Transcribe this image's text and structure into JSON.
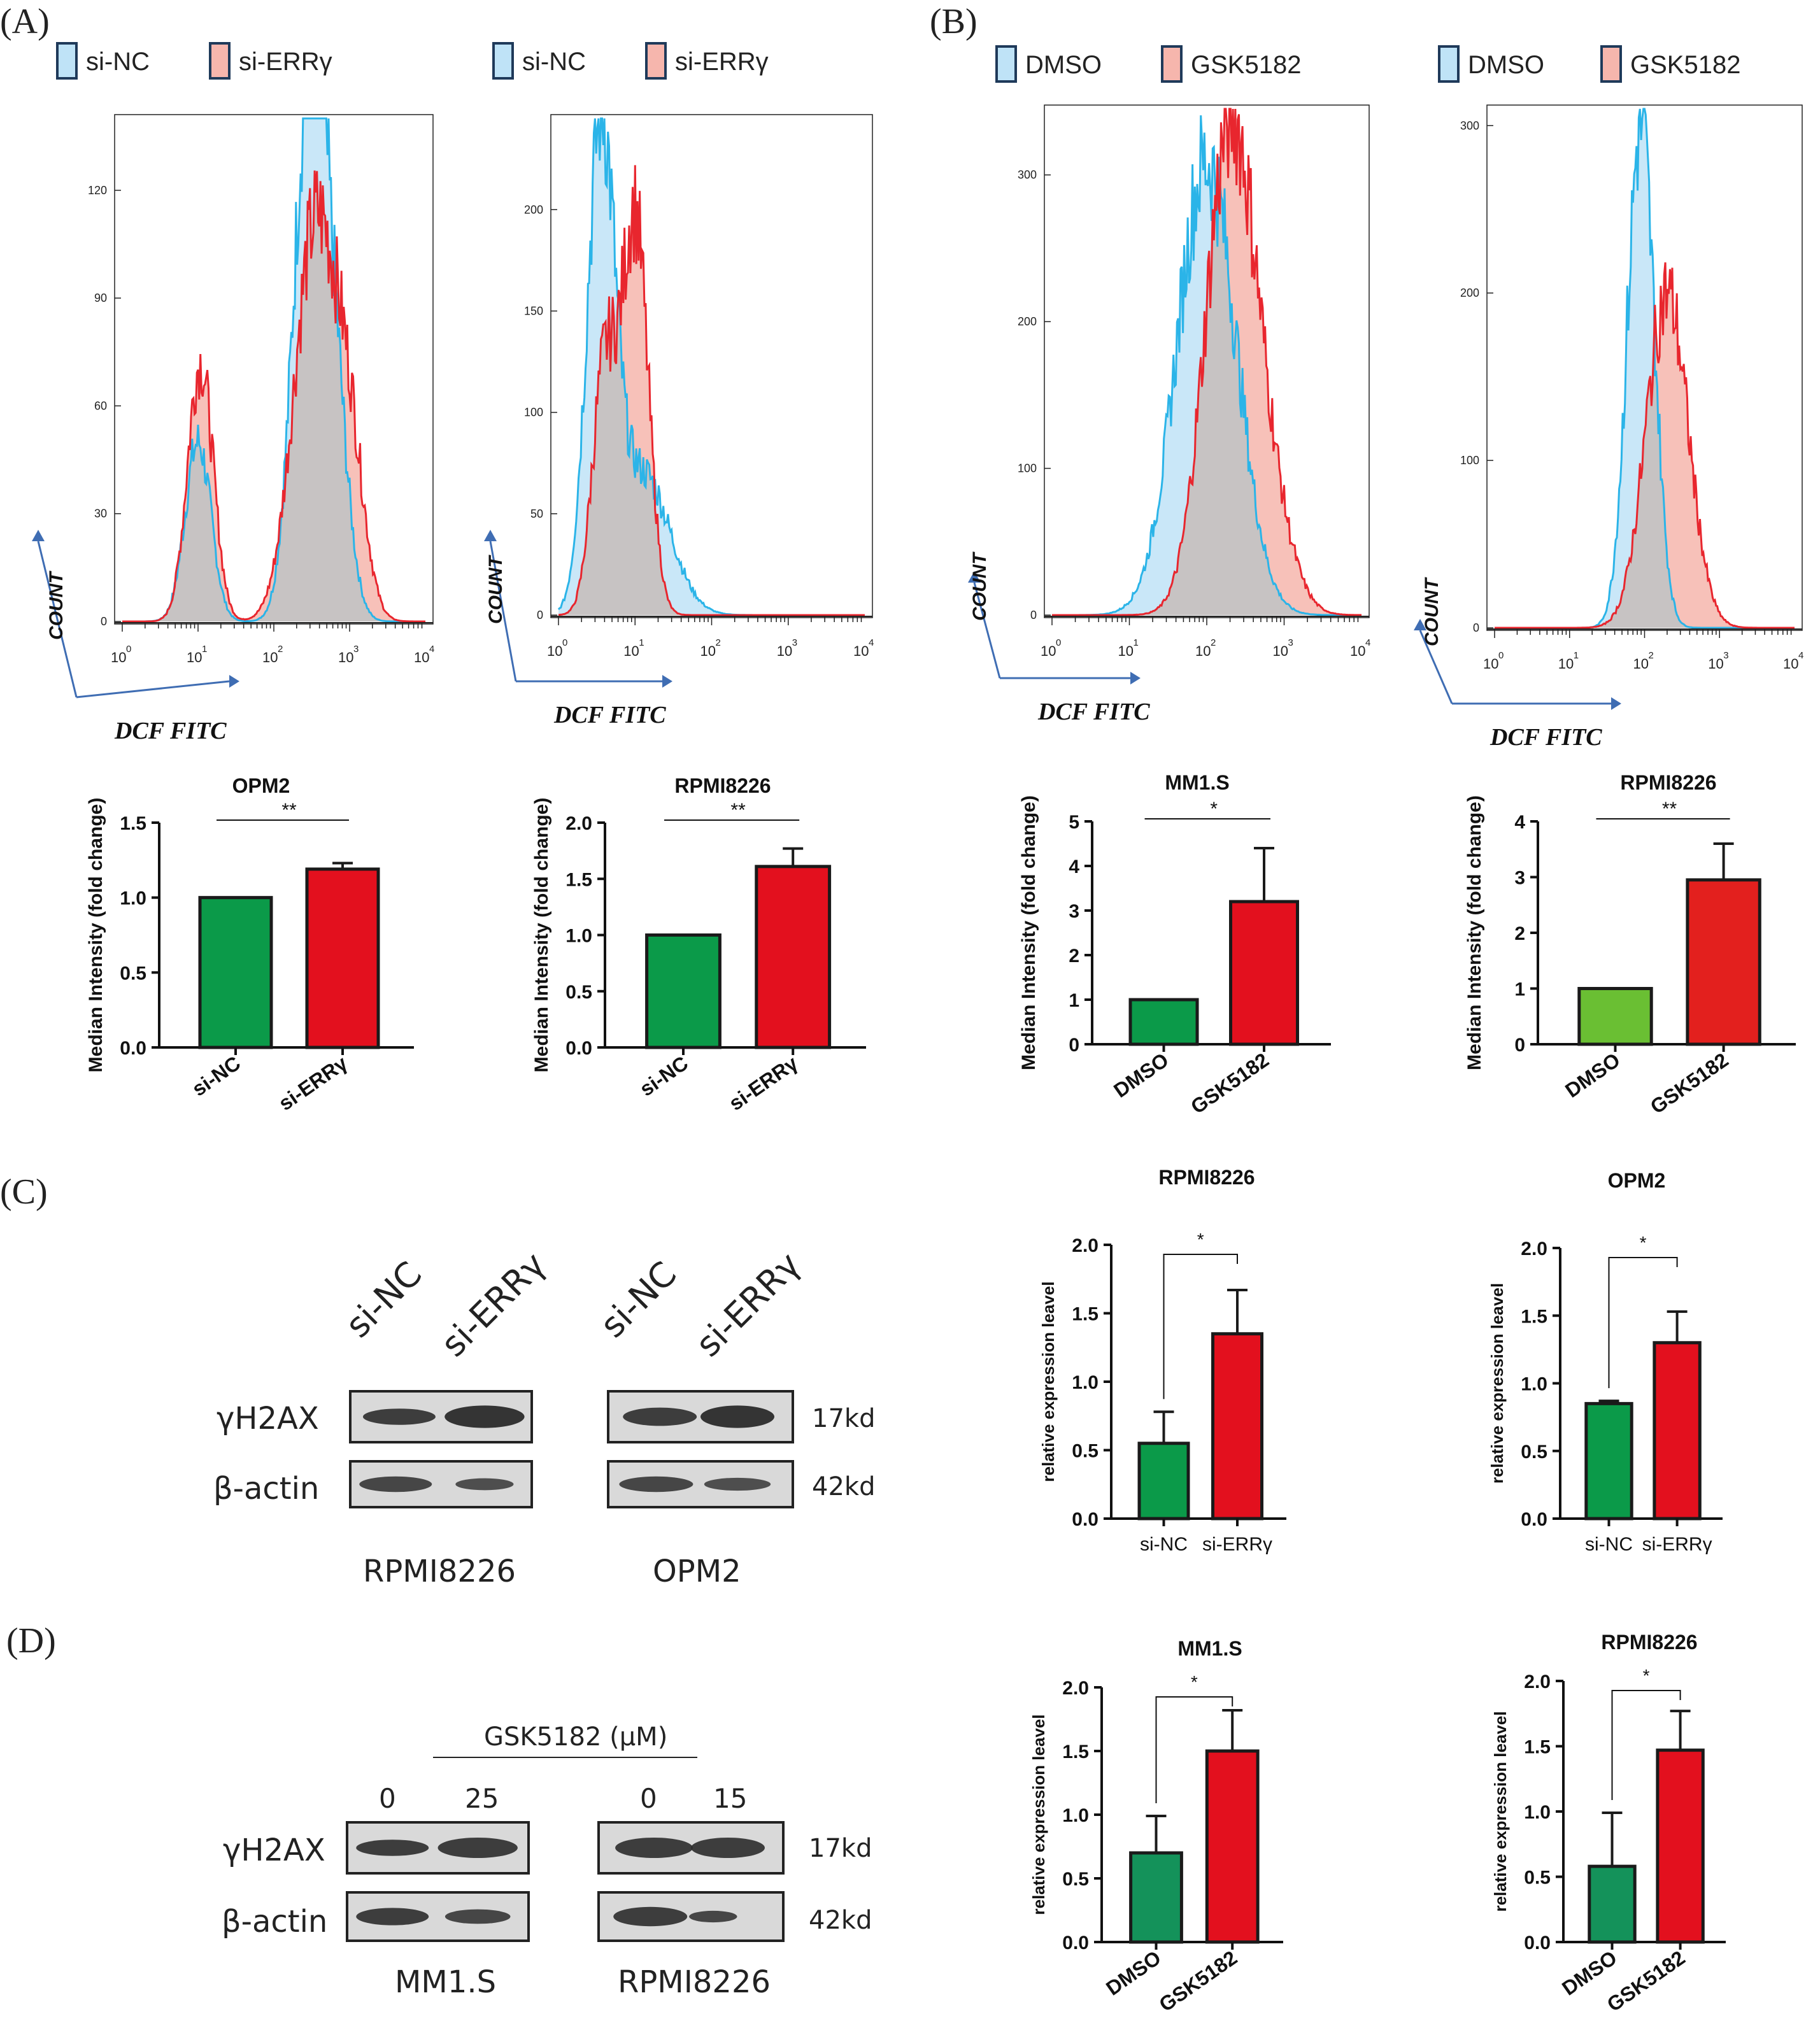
{
  "panels": {
    "A": "(A)",
    "B": "(B)",
    "C": "(C)",
    "D": "(D)"
  },
  "chart_data": [
    {
      "id": "A-hist-1",
      "type": "area",
      "legend": [
        "si-NC",
        "si-ERRγ"
      ],
      "ylabel": "COUNT",
      "xlabel": "DCF FITC",
      "xscale": "log",
      "x_ticks": [
        "10",
        "10",
        "10",
        "10",
        "10"
      ],
      "x_exps": [
        "0",
        "1",
        "2",
        "3",
        "4"
      ],
      "y_ticks": [
        "0",
        "30",
        "60",
        "90",
        "120"
      ],
      "ylim": [
        0,
        140
      ],
      "series": [
        {
          "name": "si-NC",
          "color": "#2bb4e8",
          "fill": "#bfe3f7",
          "peaks": [
            [
              1.0,
              50,
              0.17
            ],
            [
              2.45,
              137,
              0.2
            ],
            [
              2.75,
              70,
              0.2
            ]
          ]
        },
        {
          "name": "si-ERRγ",
          "color": "#e8262e",
          "fill": "#f6b6ad",
          "peaks": [
            [
              1.03,
              72,
              0.17
            ],
            [
              2.55,
              110,
              0.28
            ],
            [
              3.0,
              40,
              0.2
            ]
          ]
        }
      ]
    },
    {
      "id": "A-hist-2",
      "type": "area",
      "legend": [
        "si-NC",
        "si-ERRγ"
      ],
      "ylabel": "COUNT",
      "xlabel": "DCF FITC",
      "xscale": "log",
      "x_ticks": [
        "10",
        "10",
        "10",
        "10",
        "10"
      ],
      "x_exps": [
        "0",
        "1",
        "2",
        "3",
        "4"
      ],
      "y_ticks": [
        "0",
        "50",
        "100",
        "150",
        "200"
      ],
      "ylim": [
        0,
        245
      ],
      "series": [
        {
          "name": "si-NC",
          "color": "#2bb4e8",
          "fill": "#bfe3f7",
          "peaks": [
            [
              0.55,
              230,
              0.18
            ],
            [
              1.1,
              70,
              0.35
            ]
          ]
        },
        {
          "name": "si-ERRγ",
          "color": "#e8262e",
          "fill": "#f6b6ad",
          "peaks": [
            [
              0.6,
              120,
              0.16
            ],
            [
              1.0,
              195,
              0.17
            ]
          ]
        }
      ]
    },
    {
      "id": "B-hist-1",
      "type": "area",
      "legend": [
        "DMSO",
        "GSK5182"
      ],
      "ylabel": "COUNT",
      "xlabel": "DCF FITC",
      "xscale": "log",
      "x_ticks": [
        "10",
        "10",
        "10",
        "10",
        "10"
      ],
      "x_exps": [
        "0",
        "1",
        "2",
        "3",
        "4"
      ],
      "y_ticks": [
        "0",
        "100",
        "200",
        "300"
      ],
      "ylim": [
        0,
        345
      ],
      "series": [
        {
          "name": "DMSO",
          "color": "#2bb4e8",
          "fill": "#bfe3f7",
          "peaks": [
            [
              2.0,
              310,
              0.38
            ]
          ]
        },
        {
          "name": "GSK5182",
          "color": "#e8262e",
          "fill": "#f6b6ad",
          "peaks": [
            [
              2.3,
              325,
              0.32
            ],
            [
              2.8,
              60,
              0.3
            ]
          ]
        }
      ]
    },
    {
      "id": "B-hist-2",
      "type": "area",
      "legend": [
        "DMSO",
        "GSK5182"
      ],
      "ylabel": "COUNT",
      "xlabel": "DCF FITC",
      "xscale": "log",
      "x_ticks": [
        "10",
        "10",
        "10",
        "10",
        "10"
      ],
      "x_exps": [
        "0",
        "1",
        "2",
        "3",
        "4"
      ],
      "y_ticks": [
        "0",
        "100",
        "200",
        "300"
      ],
      "ylim": [
        0,
        310
      ],
      "series": [
        {
          "name": "DMSO",
          "color": "#2bb4e8",
          "fill": "#bfe3f7",
          "peaks": [
            [
              1.95,
              300,
              0.18
            ]
          ]
        },
        {
          "name": "GSK5182",
          "color": "#e8262e",
          "fill": "#f6b6ad",
          "peaks": [
            [
              2.3,
              200,
              0.28
            ]
          ]
        }
      ]
    },
    {
      "id": "A-bar-OPM2",
      "type": "bar",
      "title": "OPM2",
      "ylabel": "Median Intensity (fold change)",
      "categories": [
        "si-NC",
        "si-ERRγ"
      ],
      "values": [
        1.0,
        1.19
      ],
      "errors": [
        0,
        0.04
      ],
      "colors": [
        "#0b9a49",
        "#e3101e"
      ],
      "ylim": [
        0,
        1.5
      ],
      "y_ticks": [
        "0.0",
        "0.5",
        "1.0",
        "1.5"
      ],
      "significance": "**"
    },
    {
      "id": "A-bar-RPMI8226",
      "type": "bar",
      "title": "RPMI8226",
      "ylabel": "Median Intensity (fold change)",
      "categories": [
        "si-NC",
        "si-ERRγ"
      ],
      "values": [
        1.0,
        1.61
      ],
      "errors": [
        0,
        0.16
      ],
      "colors": [
        "#0b9a49",
        "#e3101e"
      ],
      "ylim": [
        0,
        2.0
      ],
      "y_ticks": [
        "0.0",
        "0.5",
        "1.0",
        "1.5",
        "2.0"
      ],
      "significance": "**"
    },
    {
      "id": "B-bar-MM1S",
      "type": "bar",
      "title": "MM1.S",
      "ylabel": "Median Intensity (fold change)",
      "categories": [
        "DMSO",
        "GSK5182"
      ],
      "values": [
        1.0,
        3.2
      ],
      "errors": [
        0,
        1.2
      ],
      "colors": [
        "#0b9a49",
        "#e3101e"
      ],
      "ylim": [
        0,
        5
      ],
      "y_ticks": [
        "0",
        "1",
        "2",
        "3",
        "4",
        "5"
      ],
      "significance": "*"
    },
    {
      "id": "B-bar-RPMI8226",
      "type": "bar",
      "title": "RPMI8226",
      "ylabel": "Median Intensity (fold change)",
      "categories": [
        "DMSO",
        "GSK5182"
      ],
      "values": [
        1.0,
        2.95
      ],
      "errors": [
        0,
        0.65
      ],
      "colors": [
        "#6abf33",
        "#e3201e"
      ],
      "ylim": [
        0,
        4
      ],
      "y_ticks": [
        "0",
        "1",
        "2",
        "3",
        "4"
      ],
      "significance": "**"
    },
    {
      "id": "C-bar-RPMI8226",
      "type": "bar",
      "title": "RPMI8226",
      "ylabel": "relative expression leavel",
      "categories": [
        "si-NC",
        "si-ERRγ"
      ],
      "values": [
        0.55,
        1.35
      ],
      "errors": [
        0.23,
        0.32
      ],
      "colors": [
        "#0b9a49",
        "#e3101e"
      ],
      "ylim": [
        0,
        2.0
      ],
      "y_ticks": [
        "0.0",
        "0.5",
        "1.0",
        "1.5",
        "2.0"
      ],
      "significance": "*"
    },
    {
      "id": "C-bar-OPM2",
      "type": "bar",
      "title": "OPM2",
      "ylabel": "relative expression leavel",
      "categories": [
        "si-NC",
        "si-ERRγ"
      ],
      "values": [
        0.85,
        1.3
      ],
      "errors": [
        0.02,
        0.23
      ],
      "colors": [
        "#0b9a49",
        "#e3101e"
      ],
      "ylim": [
        0,
        2.0
      ],
      "y_ticks": [
        "0.0",
        "0.5",
        "1.0",
        "1.5",
        "2.0"
      ],
      "significance": "*"
    },
    {
      "id": "D-bar-MM1S",
      "type": "bar",
      "title": "MM1.S",
      "ylabel": "relative expression leavel",
      "categories": [
        "DMSO",
        "GSK5182"
      ],
      "values": [
        0.7,
        1.5
      ],
      "errors": [
        0.29,
        0.32
      ],
      "colors": [
        "#14925a",
        "#e3101e"
      ],
      "ylim": [
        0,
        2.0
      ],
      "y_ticks": [
        "0.0",
        "0.5",
        "1.0",
        "1.5",
        "2.0"
      ],
      "significance": "*"
    },
    {
      "id": "D-bar-RPMI8226",
      "type": "bar",
      "title": "RPMI8226",
      "ylabel": "relative expression leavel",
      "categories": [
        "DMSO",
        "GSK5182"
      ],
      "values": [
        0.58,
        1.47
      ],
      "errors": [
        0.41,
        0.3
      ],
      "colors": [
        "#14925a",
        "#e3101e"
      ],
      "ylim": [
        0,
        2.0
      ],
      "y_ticks": [
        "0.0",
        "0.5",
        "1.0",
        "1.5",
        "2.0"
      ],
      "significance": "*"
    }
  ],
  "blots": {
    "C": {
      "lanes": [
        "si-NC",
        "si-ERRγ",
        "si-NC",
        "si-ERRγ"
      ],
      "rows": [
        "γH2AX",
        "β-actin"
      ],
      "sizes": [
        "17kd",
        "42kd"
      ],
      "cell_lines": [
        "RPMI8226",
        "OPM2"
      ]
    },
    "D": {
      "treatment": "GSK5182 (μM)",
      "doses": [
        "0",
        "25",
        "0",
        "15"
      ],
      "rows": [
        "γH2AX",
        "β-actin"
      ],
      "sizes": [
        "17kd",
        "42kd"
      ],
      "cell_lines": [
        "MM1.S",
        "RPMI8226"
      ]
    }
  }
}
